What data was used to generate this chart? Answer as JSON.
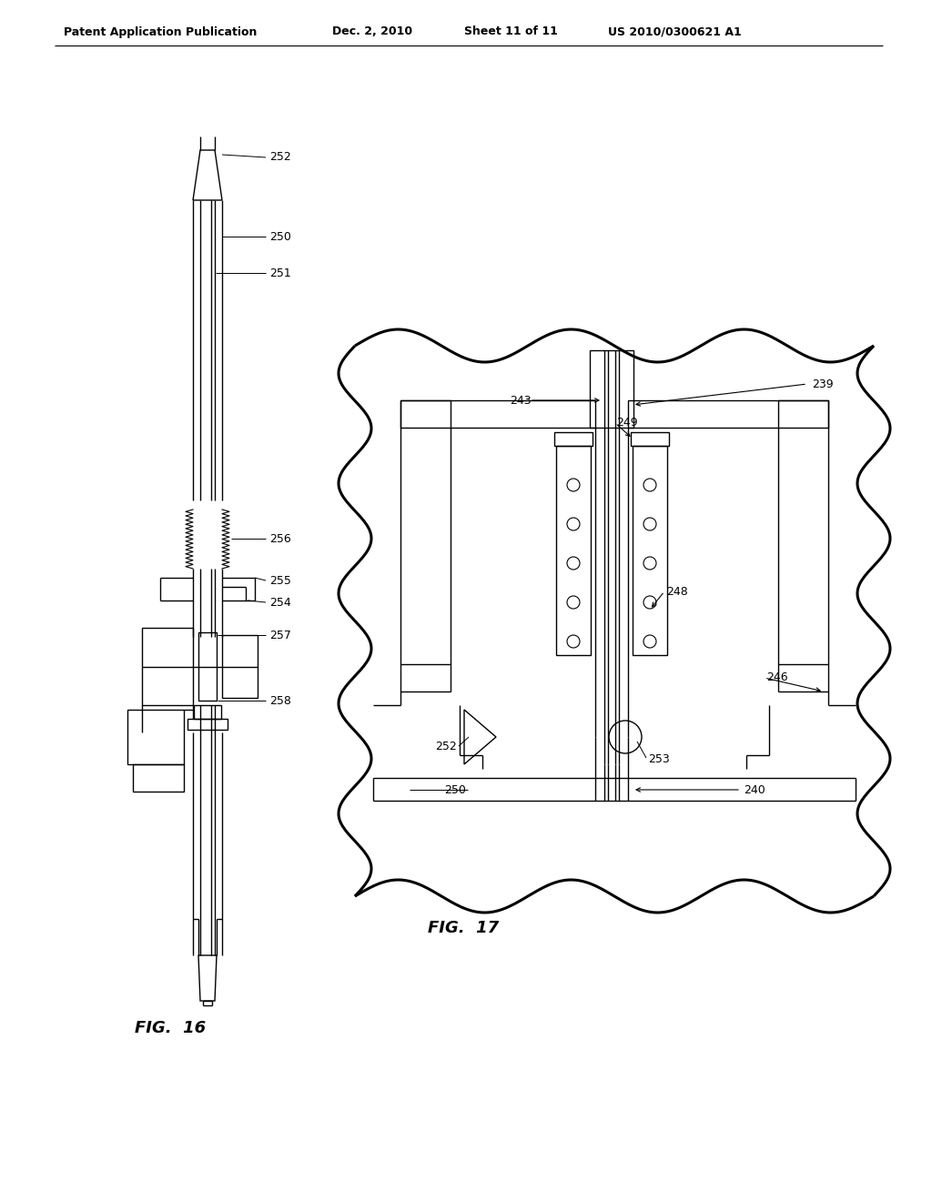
{
  "bg_color": "#ffffff",
  "header_text": "Patent Application Publication",
  "header_date": "Dec. 2, 2010",
  "header_sheet": "Sheet 11 of 11",
  "header_patent": "US 2010/0300621 A1",
  "fig16_label": "FIG.  16",
  "fig17_label": "FIG.  17",
  "line_color": "#000000",
  "lw": 1.0,
  "tlw": 2.2
}
